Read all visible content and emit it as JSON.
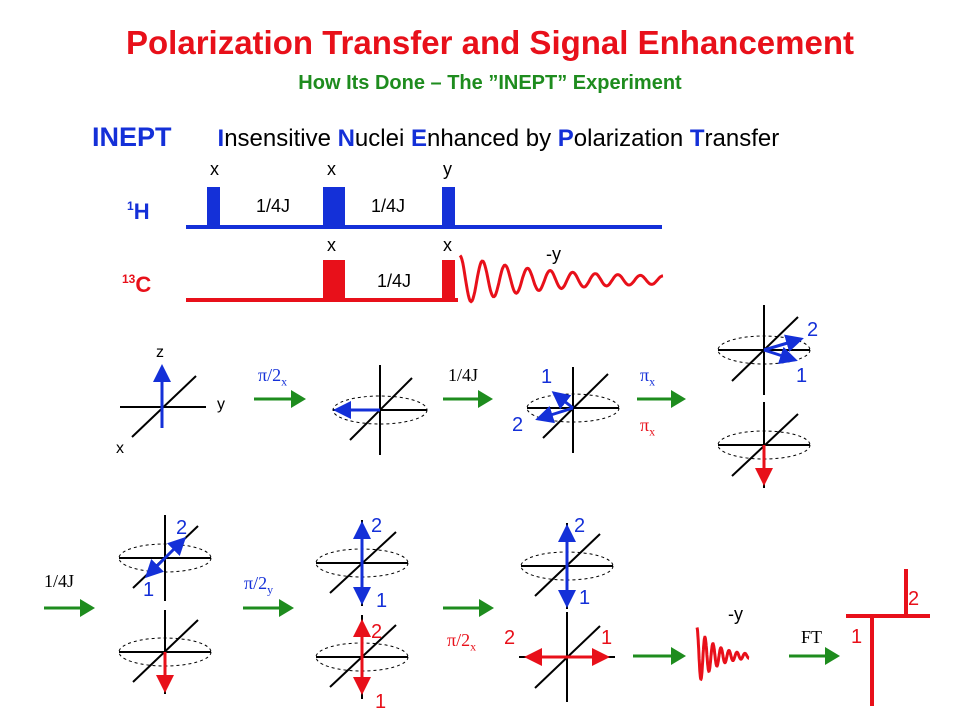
{
  "title": "Polarization Transfer and Signal Enhancement",
  "subtitle": "How Its Done – The ”INEPT”  Experiment",
  "acronym": {
    "abbrev": "INEPT",
    "words": [
      {
        "initial": "I",
        "rest": "nsensitive "
      },
      {
        "initial": "N",
        "rest": "uclei "
      },
      {
        "initial": "E",
        "rest": "nhanced by "
      },
      {
        "initial": "P",
        "rest": "olarization "
      },
      {
        "initial": "T",
        "rest": "ransfer"
      }
    ]
  },
  "pulse_sequence": {
    "h_channel": {
      "mass": "1",
      "element": "H",
      "phases": [
        "x",
        "x",
        "y"
      ],
      "delays": [
        "1/4J",
        "1/4J"
      ]
    },
    "c_channel": {
      "mass": "13",
      "element": "C",
      "phases": [
        "x",
        "x"
      ],
      "delay": "1/4J",
      "acquire_phase": "-y"
    }
  },
  "axes": {
    "z": "z",
    "y": "y",
    "x": "x"
  },
  "operations": {
    "pi_over_2": "π/2",
    "pi": "π",
    "sub_x": "x",
    "sub_y": "y",
    "delay": "1/4J",
    "minus_y": "-y",
    "ft": "FT"
  },
  "spin_labels": {
    "one": "1",
    "two": "2"
  },
  "colors": {
    "title": "#e8101a",
    "subtitle": "#1e8c1e",
    "proton": "#1430d8",
    "carbon": "#e8101a",
    "arrow": "#1e8c1e"
  }
}
